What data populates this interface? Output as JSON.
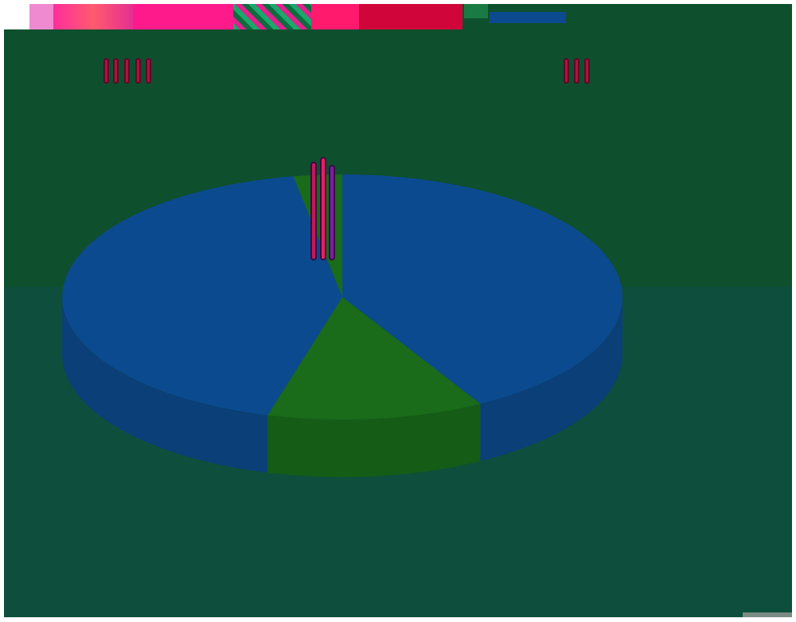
{
  "chart_data": {
    "type": "pie",
    "title": "",
    "slices": [
      {
        "label": "",
        "value": 41.8,
        "color": "#0b4a8f",
        "side": "#0a3f78"
      },
      {
        "label": "",
        "value": 12.5,
        "color": "#1a6b1a",
        "side": "#155c17"
      },
      {
        "label": "",
        "value": 42.9,
        "color": "#0b4a8f",
        "side": "#0a3f78"
      },
      {
        "label": "",
        "value": 2.8,
        "color": "#1a6b1a",
        "side": "#155c17"
      }
    ],
    "legend": "none"
  },
  "colors": {
    "background": "#0d4f3c",
    "upper_band": "#0e4f2e",
    "accent": "#b0123a",
    "toolbar_pink": "#ff1a6e",
    "toolbar_red": "#d0053a"
  },
  "icons": [
    "toolbar-swatch-icon",
    "window-control-icon"
  ]
}
